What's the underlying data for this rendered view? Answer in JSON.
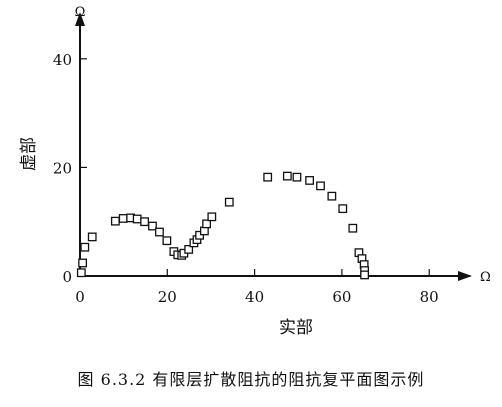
{
  "chart_data": {
    "type": "scatter",
    "xlabel": "实部",
    "ylabel": "虚部",
    "x_unit": "Ω",
    "y_unit": "Ω",
    "xlim": [
      0,
      90
    ],
    "ylim": [
      0,
      48
    ],
    "xticks": [
      0,
      20,
      40,
      60,
      80
    ],
    "yticks": [
      0,
      20,
      40
    ],
    "grid": false,
    "marker": "open-square",
    "series": [
      {
        "points": [
          [
            0.3,
            0.6
          ],
          [
            0.6,
            2.4
          ],
          [
            1.1,
            5.3
          ],
          [
            2.8,
            7.2
          ],
          [
            8.1,
            10.1
          ],
          [
            9.9,
            10.6
          ],
          [
            11.6,
            10.7
          ],
          [
            13.1,
            10.5
          ],
          [
            14.8,
            10.0
          ],
          [
            16.6,
            9.2
          ],
          [
            18.2,
            8.1
          ],
          [
            19.9,
            6.5
          ],
          [
            21.5,
            4.5
          ],
          [
            22.4,
            3.9
          ],
          [
            23.3,
            3.8
          ],
          [
            23.8,
            4.2
          ],
          [
            24.9,
            4.9
          ],
          [
            26.1,
            6.1
          ],
          [
            26.8,
            6.7
          ],
          [
            27.4,
            7.5
          ],
          [
            28.5,
            8.3
          ],
          [
            29.0,
            9.6
          ],
          [
            30.2,
            10.9
          ],
          [
            34.2,
            13.6
          ],
          [
            43.0,
            18.2
          ],
          [
            47.5,
            18.4
          ],
          [
            49.7,
            18.2
          ],
          [
            52.6,
            17.6
          ],
          [
            55.1,
            16.6
          ],
          [
            57.7,
            14.7
          ],
          [
            60.2,
            12.4
          ],
          [
            62.5,
            8.8
          ],
          [
            63.9,
            4.3
          ],
          [
            64.6,
            3.2
          ],
          [
            65.1,
            2.1
          ],
          [
            65.2,
            1.0
          ],
          [
            65.2,
            0.2
          ]
        ]
      }
    ]
  },
  "caption": "图 6.3.2   有限层扩散阻抗的阻抗复平面图示例"
}
